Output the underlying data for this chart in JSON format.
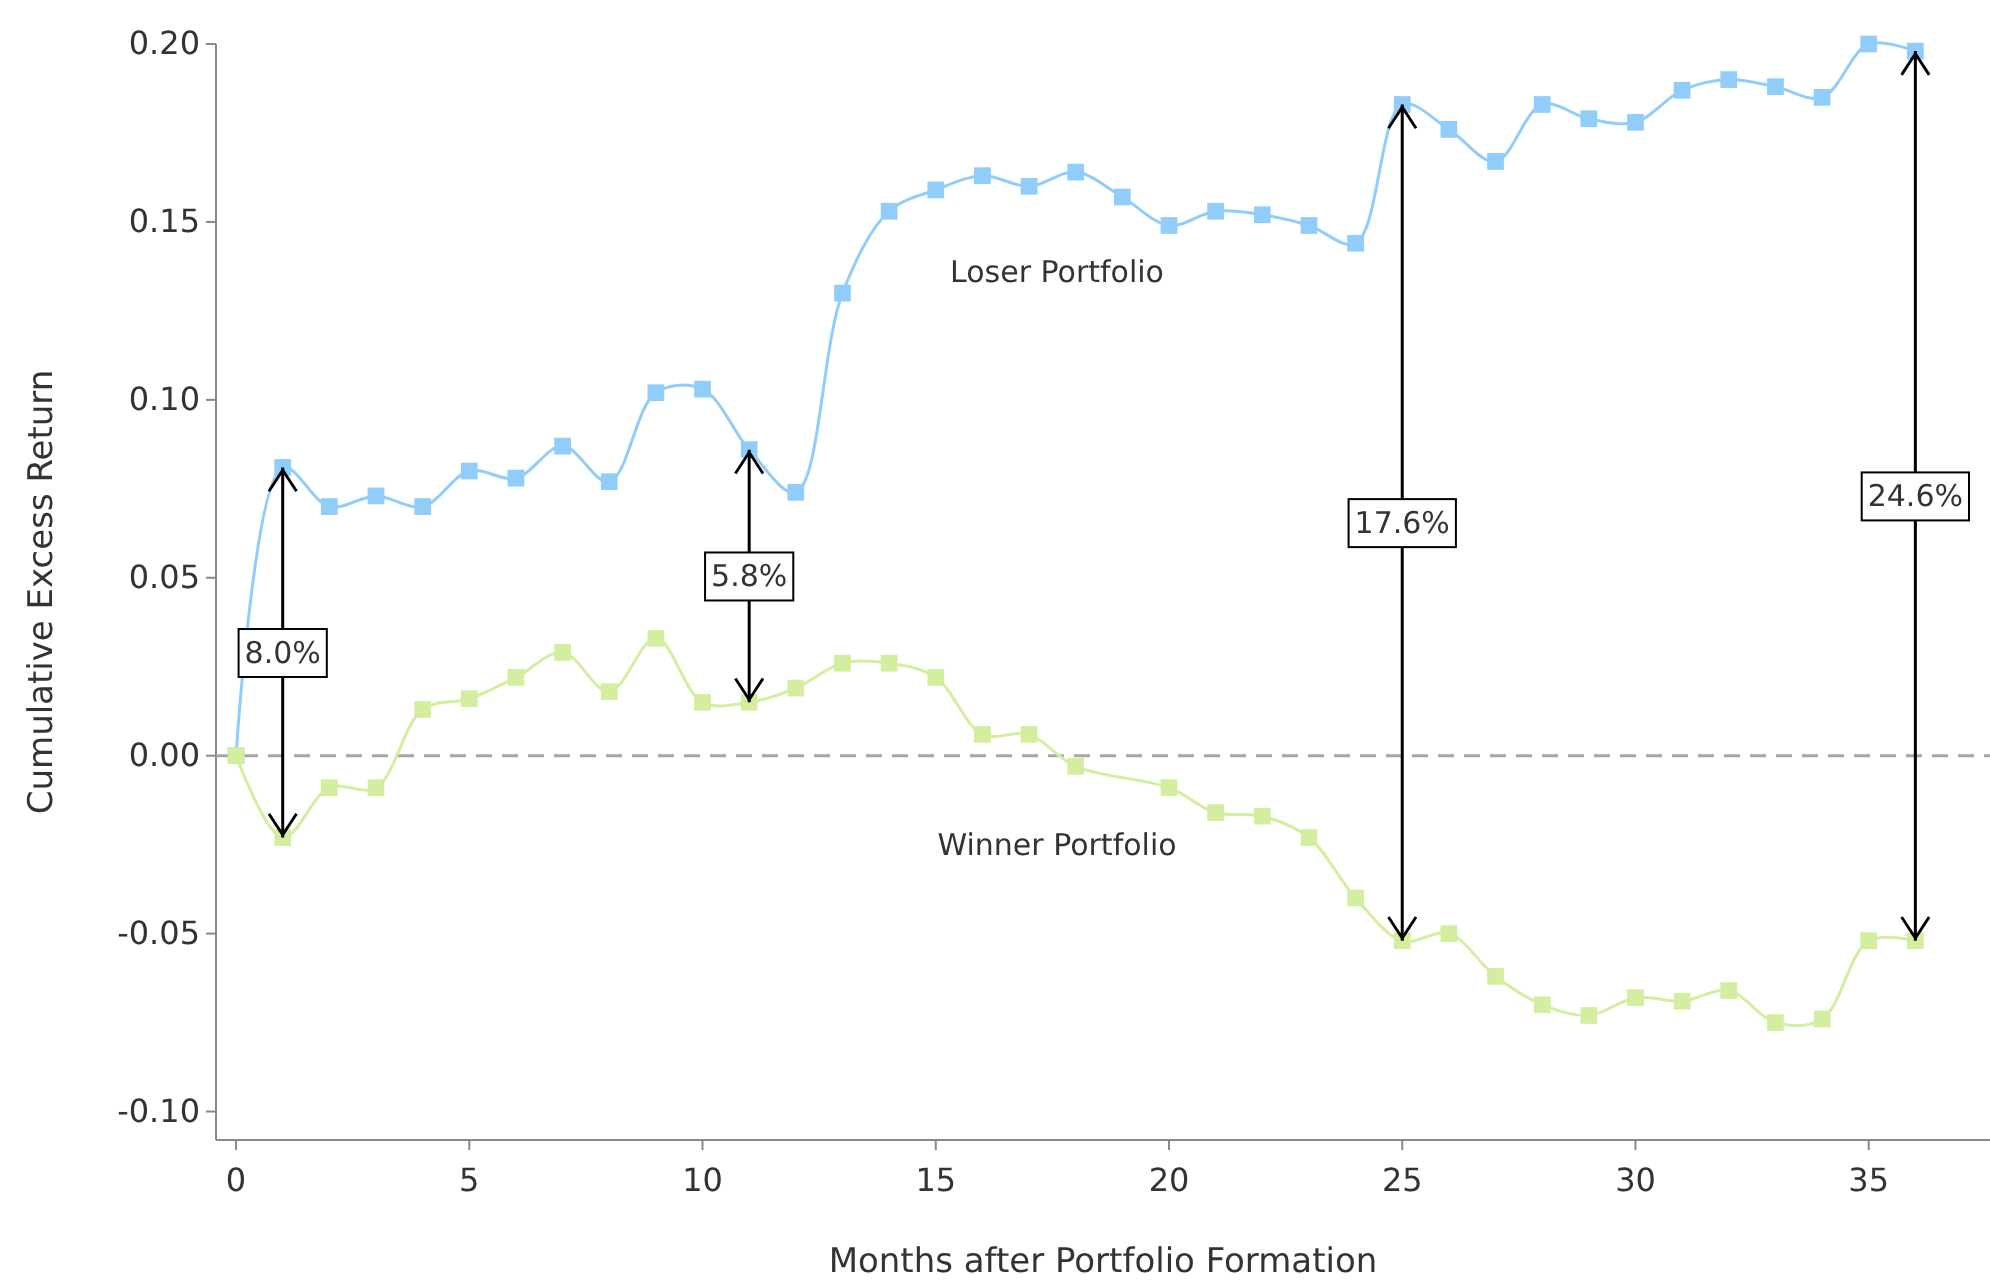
{
  "chart_data": {
    "type": "line",
    "xlabel": "Months after Portfolio Formation",
    "ylabel": "Cumulative Excess Return",
    "xlim": [
      -0.43,
      37.6
    ],
    "xticks": [
      0,
      5,
      10,
      15,
      20,
      25,
      30,
      35
    ],
    "ylim": [
      -0.108,
      0.2
    ],
    "yticks": [
      {
        "value": -0.1,
        "label": "-0.10"
      },
      {
        "value": -0.05,
        "label": "-0.05"
      },
      {
        "value": 0,
        "label": "0.00"
      },
      {
        "value": 0.05,
        "label": "0.05"
      },
      {
        "value": 0.1,
        "label": "0.10"
      },
      {
        "value": 0.15,
        "label": "0.15"
      },
      {
        "value": 0.2,
        "label": "0.20"
      }
    ],
    "legend": false,
    "marker": "square",
    "line_style": "solid",
    "series": [
      {
        "name": "Loser Portfolio",
        "color": "#91cdfa",
        "x": [
          0,
          1,
          2,
          3,
          4,
          5,
          6,
          7,
          8,
          9,
          10,
          11,
          12,
          13,
          14,
          15,
          16,
          17,
          18,
          19,
          20,
          21,
          22,
          23,
          24,
          25,
          26,
          27,
          28,
          29,
          30,
          31,
          32,
          33,
          34,
          35,
          36
        ],
        "values": [
          0,
          0.081,
          0.07,
          0.073,
          0.07,
          0.08,
          0.078,
          0.087,
          0.077,
          0.102,
          0.103,
          0.086,
          0.074,
          0.13,
          0.153,
          0.159,
          0.163,
          0.16,
          0.164,
          0.157,
          0.149,
          0.153,
          0.152,
          0.149,
          0.144,
          0.183,
          0.176,
          0.167,
          0.183,
          0.179,
          0.178,
          0.187,
          0.19,
          0.188,
          0.185,
          0.2,
          0.198
        ]
      },
      {
        "name": "Winner Portfolio",
        "color": "#d4eea0",
        "x": [
          0,
          1,
          2,
          3,
          4,
          5,
          6,
          7,
          8,
          9,
          10,
          11,
          12,
          13,
          14,
          15,
          16,
          17,
          18,
          20,
          21,
          22,
          23,
          24,
          25,
          26,
          27,
          28,
          29,
          30,
          31,
          32,
          33,
          34,
          35,
          36
        ],
        "values": [
          0,
          -0.023,
          -0.009,
          -0.009,
          0.013,
          0.016,
          0.022,
          0.029,
          0.018,
          0.033,
          0.015,
          0.015,
          0.019,
          0.026,
          0.026,
          0.022,
          0.006,
          0.006,
          -0.003,
          -0.009,
          -0.016,
          -0.017,
          -0.023,
          -0.04,
          -0.052,
          -0.05,
          -0.062,
          -0.07,
          -0.073,
          -0.068,
          -0.069,
          -0.066,
          -0.075,
          -0.074,
          -0.052,
          -0.052
        ]
      },
      {
        "type": "line",
        "color": "#000000",
        "marker": "none",
        "x": [
          1,
          1,
          null,
          11,
          11,
          null,
          25,
          25,
          null,
          36,
          36
        ],
        "values": [
          0.081,
          -0.023,
          null,
          0.086,
          0.015,
          null,
          0.183,
          -0.052,
          null,
          0.198,
          -0.052
        ]
      }
    ],
    "ref_lines": [
      {
        "axis": "y",
        "value": 0,
        "color": "#a6a6a6",
        "line_style": "dashed"
      }
    ],
    "annotations": [
      "8.0%",
      "5.8%",
      "17.6%",
      "24.6%"
    ]
  }
}
